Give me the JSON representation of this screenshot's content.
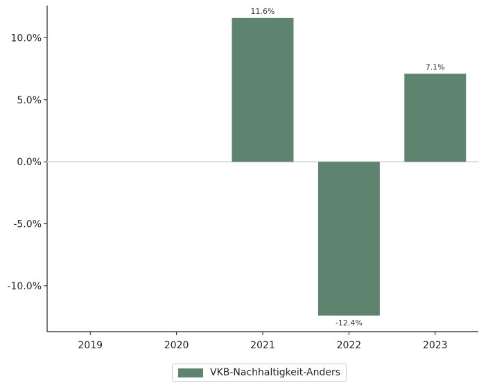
{
  "chart_data": {
    "type": "bar",
    "categories": [
      "2019",
      "2020",
      "2021",
      "2022",
      "2023"
    ],
    "series": [
      {
        "name": "VKB-Nachhaltigkeit-Anders",
        "values": [
          null,
          null,
          11.6,
          -12.4,
          7.1
        ],
        "labels": [
          "",
          "",
          "11.6%",
          "-12.4%",
          "7.1%"
        ],
        "color": "#5e836e"
      }
    ],
    "yticks": [
      {
        "value": 10,
        "label": "10.0%"
      },
      {
        "value": 5,
        "label": "5.0%"
      },
      {
        "value": 0,
        "label": "0.0%"
      },
      {
        "value": -5,
        "label": "-5.0%"
      },
      {
        "value": -10,
        "label": "-10.0%"
      }
    ],
    "ylim": [
      -13.7,
      12.6
    ],
    "grid": false,
    "legend_position": "bottom-center",
    "title": "",
    "xlabel": "",
    "ylabel": ""
  }
}
